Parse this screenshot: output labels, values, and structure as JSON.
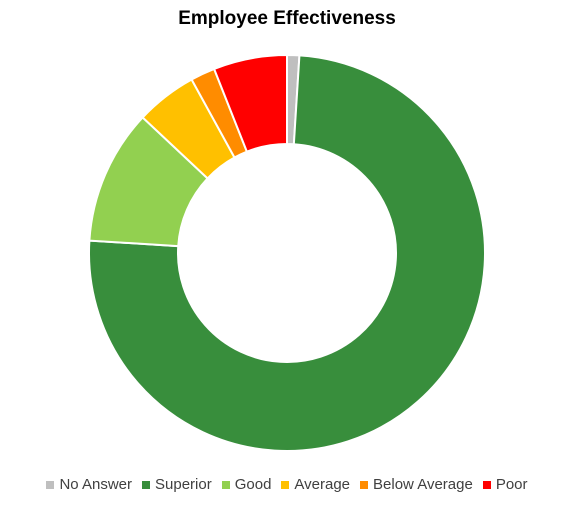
{
  "chart_data": {
    "type": "pie",
    "variant": "doughnut",
    "title": "Employee Effectiveness",
    "categories": [
      "No Answer",
      "Superior",
      "Good",
      "Average",
      "Below Average",
      "Poor"
    ],
    "values": [
      1,
      75,
      11,
      5,
      2,
      6
    ],
    "colors": [
      "#bfbfbf",
      "#388e3c",
      "#92d050",
      "#ffc000",
      "#ff8c00",
      "#ff0000"
    ],
    "legend_position": "bottom",
    "start_angle_deg": 0,
    "direction": "clockwise"
  }
}
